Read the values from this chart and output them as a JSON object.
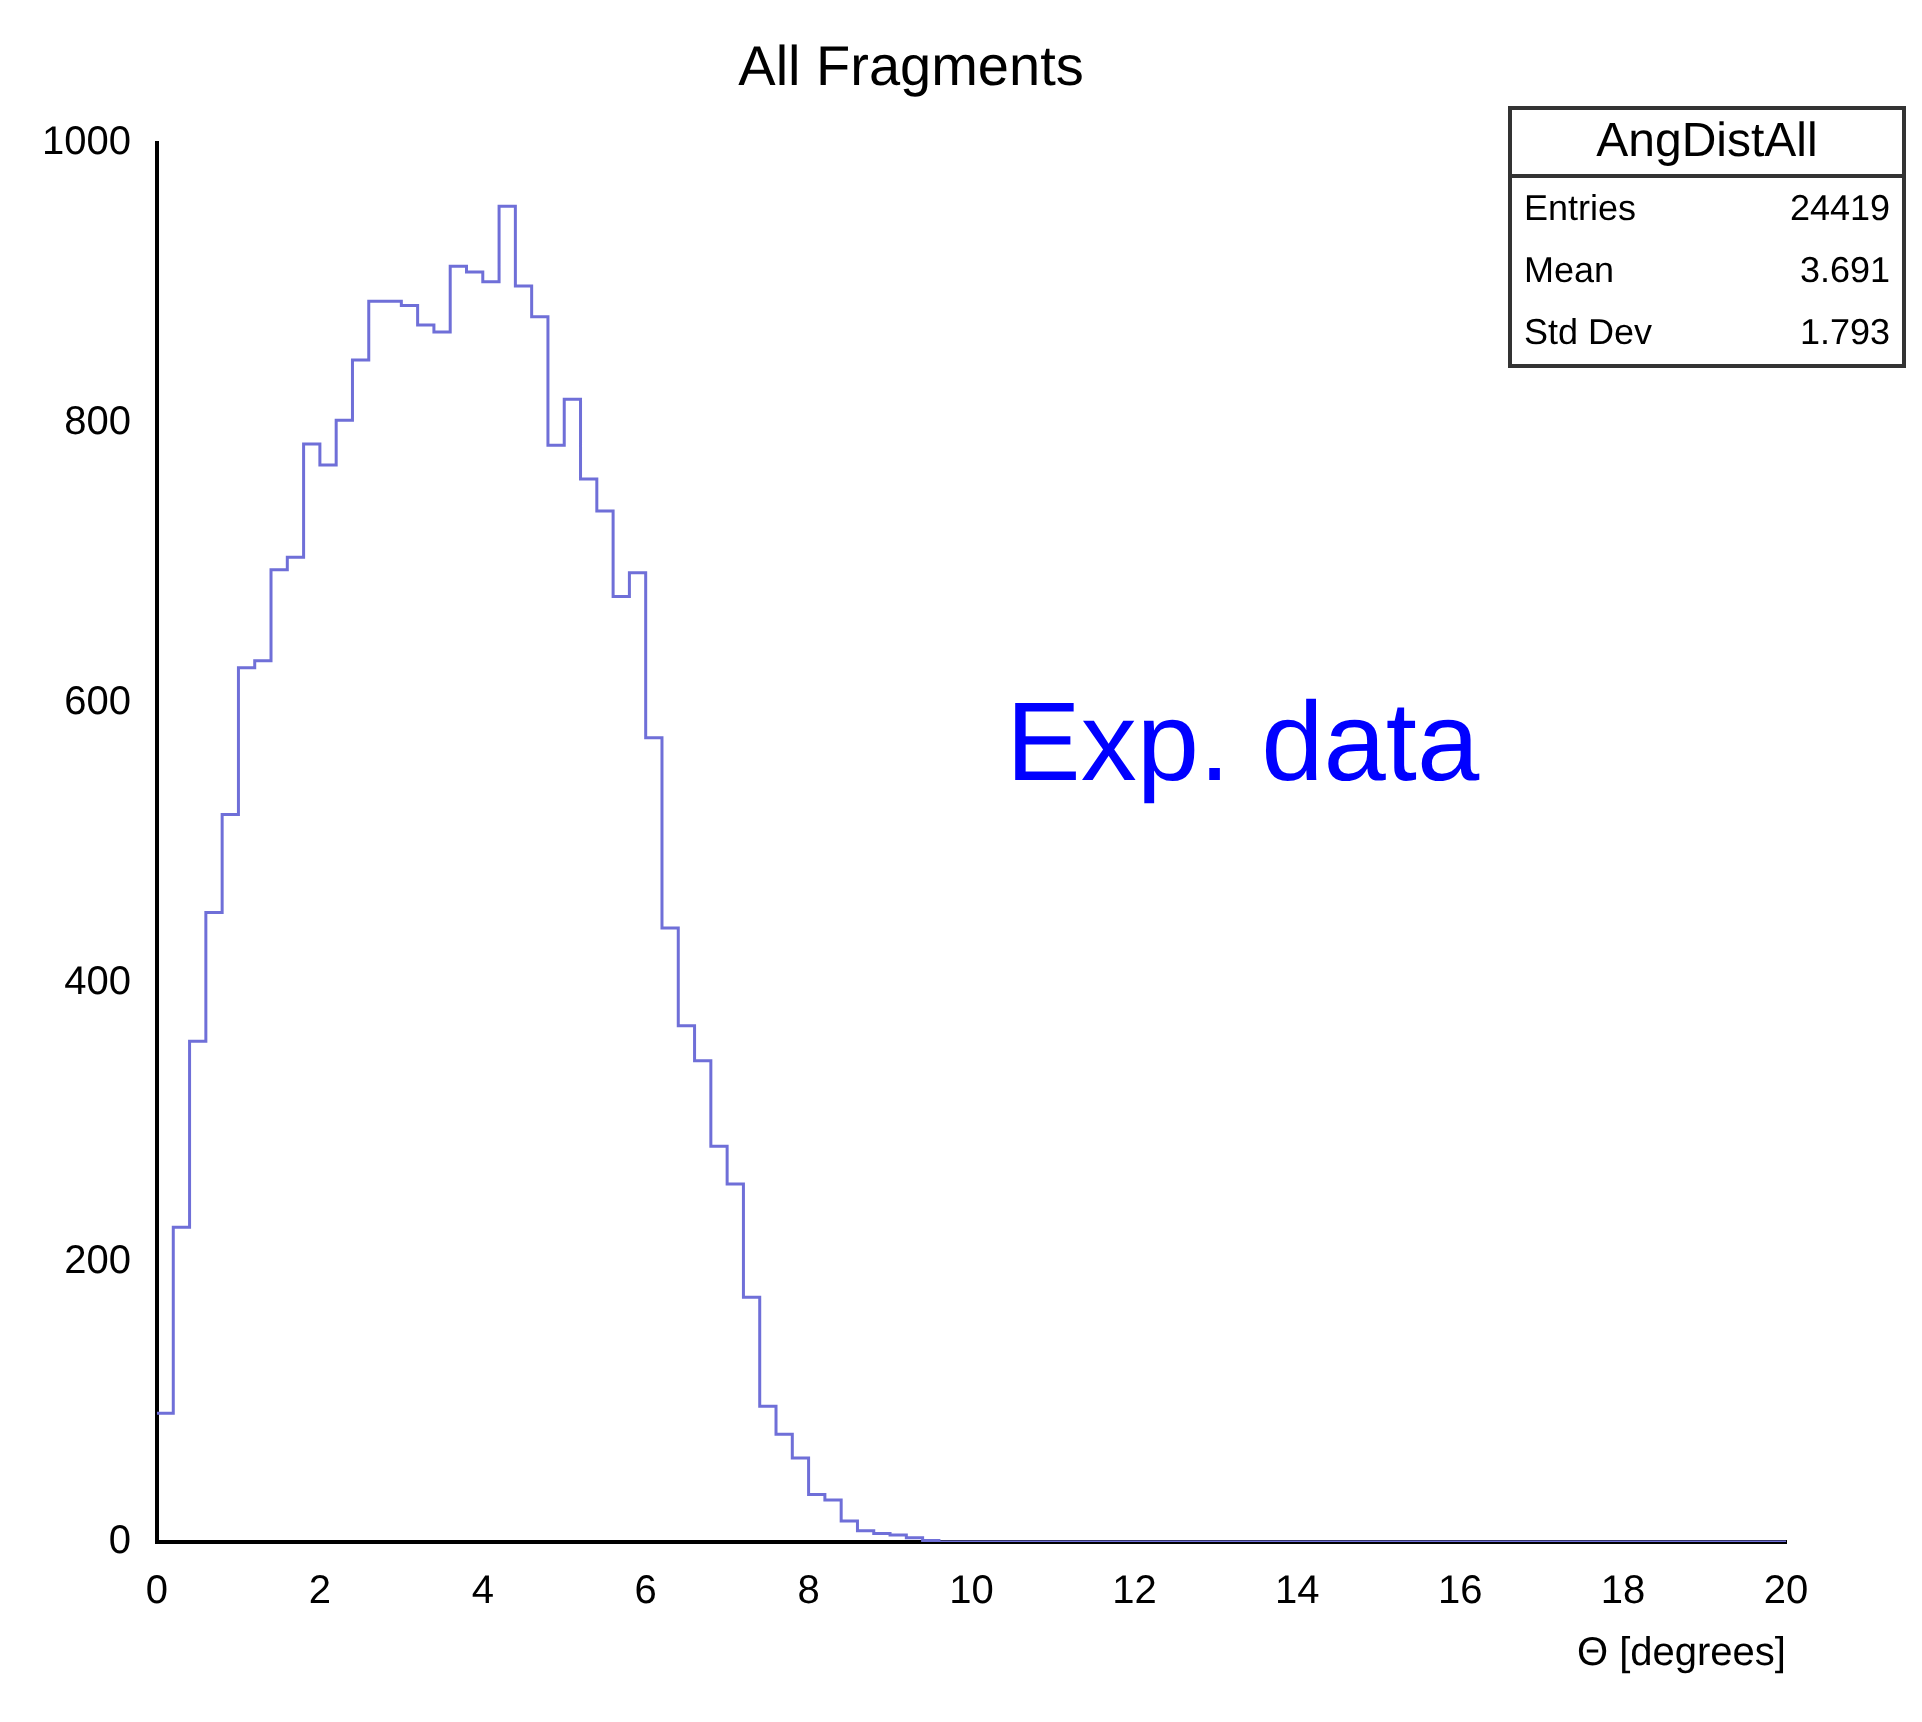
{
  "chart_data": {
    "type": "histogram",
    "title": "All Fragments",
    "xlabel": "Θ [degrees]",
    "bins": [
      0,
      0.2,
      0.4,
      0.6,
      0.8,
      1,
      1.2,
      1.4,
      1.6,
      1.8,
      2,
      2.2,
      2.4,
      2.6,
      2.8,
      3,
      3.2,
      3.4,
      3.6,
      3.8,
      4,
      4.2,
      4.4,
      4.6,
      4.8,
      5,
      5.2,
      5.4,
      5.6,
      5.8,
      6,
      6.2,
      6.4,
      6.6,
      6.8,
      7,
      7.2,
      7.4,
      7.6,
      7.8,
      8,
      8.2,
      8.4,
      8.6,
      8.8,
      9,
      9.2,
      9.4,
      9.6,
      9.8,
      10,
      10.2,
      10.4,
      10.6,
      10.8,
      11,
      11.2,
      11.4,
      11.6,
      11.8,
      12,
      12.2,
      12.4,
      12.6,
      12.8,
      13,
      13.2,
      13.4,
      13.6,
      13.8,
      14,
      14.2,
      14.4,
      14.6,
      14.8,
      15,
      15.2,
      15.4,
      15.6,
      15.8,
      16,
      16.2,
      16.4,
      16.6,
      16.8,
      17,
      17.2,
      17.4,
      17.6,
      17.8,
      18,
      18.2,
      18.4,
      18.6,
      18.8,
      19,
      19.2,
      19.4,
      19.6,
      19.8,
      20
    ],
    "values": [
      92,
      225,
      358,
      450,
      520,
      625,
      630,
      695,
      704,
      785,
      770,
      802,
      845,
      887,
      887,
      884,
      870,
      865,
      912,
      908,
      901,
      955,
      898,
      876,
      784,
      817,
      760,
      737,
      676,
      693,
      575,
      439,
      369,
      344,
      283,
      256,
      175,
      97,
      77,
      60,
      34,
      30,
      15,
      8,
      6,
      5,
      3,
      1,
      0,
      0,
      0,
      0,
      0,
      0,
      0,
      0,
      0,
      0,
      0,
      0,
      0,
      0,
      0,
      0,
      0,
      0,
      0,
      0,
      0,
      0,
      0,
      0,
      0,
      0,
      0,
      0,
      0,
      0,
      0,
      0,
      0,
      0,
      0,
      0,
      0,
      0,
      0,
      0,
      0,
      0,
      0,
      0,
      0,
      0,
      0,
      0,
      0,
      0,
      0,
      0
    ],
    "color": "#6f6fd8",
    "xlim": [
      0,
      20
    ],
    "xticks": [
      0,
      2,
      4,
      6,
      8,
      10,
      12,
      14,
      16,
      18,
      20
    ],
    "ylim": [
      0,
      1000
    ],
    "yticks": [
      0,
      200,
      400,
      600,
      800,
      1000
    ],
    "grid": false,
    "legend": false,
    "annotations": [
      "AngDistAll",
      "Entries",
      "24419",
      "Mean",
      "3.691",
      "Std Dev",
      "1.793",
      "Exp. data"
    ]
  }
}
